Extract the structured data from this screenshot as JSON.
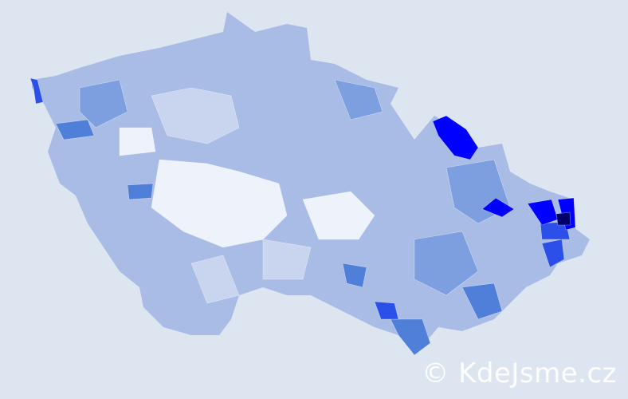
{
  "watermark": "© KdeJsme.cz",
  "colors": {
    "background": "#dde5f1",
    "base": "#a9bce6",
    "light": "#c9d5ef",
    "pale": "#eef2fa",
    "medium": "#7d9fe0",
    "strong": "#4f7fd8",
    "vivid": "#2b4fe8",
    "max": "#0000ff",
    "darkest": "#00006b"
  }
}
